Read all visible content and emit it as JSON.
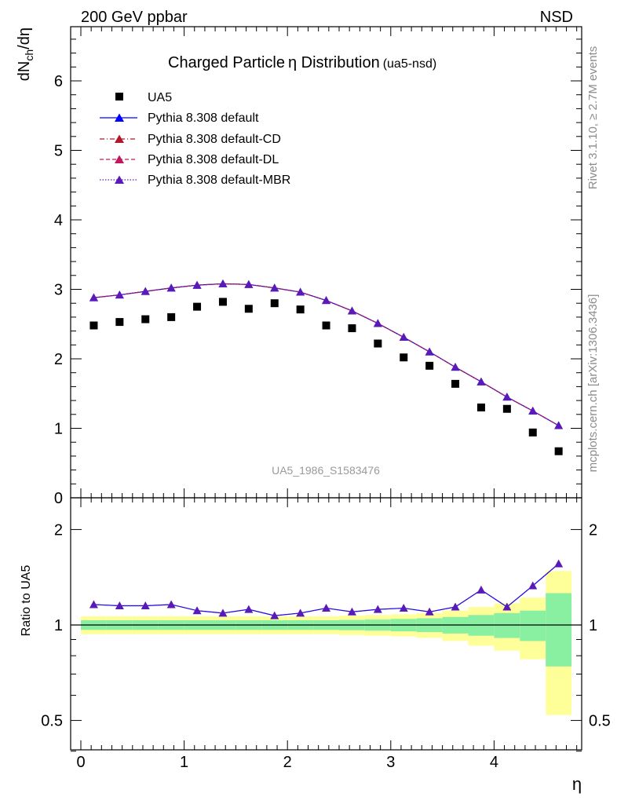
{
  "header": {
    "left": "200 GeV ppbar",
    "right": "NSD"
  },
  "side_text": {
    "upper": "Rivet 3.1.10, ≥ 2.7M events",
    "lower": "mcplots.cern.ch [arXiv:1306.3436]"
  },
  "chart_data": {
    "type": "scatter",
    "title": "Charged Particle",
    "title_eta": "η",
    "title_rest": " Distribution",
    "title_suffix": "(ua5-nsd)",
    "watermark": "UA5_1986_S1583476",
    "xlabel": "η",
    "ylabel_main": "dN",
    "ylabel_sub": "ch",
    "ylabel_rest": "/dη",
    "ratio_ylabel": "Ratio to UA5",
    "xlim": [
      -0.1,
      4.85
    ],
    "ylim": [
      0,
      6.8
    ],
    "ratio_ylim": [
      0.35,
      2.25
    ],
    "x_ticks": [
      "0",
      "1",
      "2",
      "3",
      "4"
    ],
    "y_ticks": [
      "0",
      "1",
      "2",
      "3",
      "4",
      "5",
      "6"
    ],
    "ratio_ticks": [
      "0.5",
      "1",
      "2"
    ],
    "x": [
      0.125,
      0.375,
      0.625,
      0.875,
      1.125,
      1.375,
      1.625,
      1.875,
      2.125,
      2.375,
      2.625,
      2.875,
      3.125,
      3.375,
      3.625,
      3.875,
      4.125,
      4.375,
      4.625
    ],
    "bin_edges": [
      0,
      0.25,
      0.5,
      0.75,
      1.0,
      1.25,
      1.5,
      1.75,
      2.0,
      2.25,
      2.5,
      2.75,
      3.0,
      3.25,
      3.5,
      3.75,
      4.0,
      4.25,
      4.5,
      4.75
    ],
    "series": [
      {
        "name": "UA5",
        "marker": "square",
        "color": "#000000",
        "values": [
          2.48,
          2.53,
          2.57,
          2.6,
          2.75,
          2.82,
          2.72,
          2.8,
          2.71,
          2.48,
          2.44,
          2.22,
          2.02,
          1.9,
          1.64,
          1.3,
          1.28,
          0.94,
          0.67
        ]
      },
      {
        "name": "Pythia 8.308 default",
        "marker": "triangle",
        "line": "solid",
        "color": "#0000ff",
        "values": [
          2.88,
          2.92,
          2.97,
          3.02,
          3.06,
          3.08,
          3.07,
          3.02,
          2.96,
          2.84,
          2.69,
          2.51,
          2.31,
          2.1,
          1.88,
          1.67,
          1.45,
          1.25,
          1.04
        ]
      },
      {
        "name": "Pythia 8.308 default-CD",
        "marker": "triangle",
        "line": "dashdot",
        "color": "#b2182b",
        "values": [
          2.88,
          2.92,
          2.97,
          3.02,
          3.06,
          3.08,
          3.07,
          3.02,
          2.96,
          2.84,
          2.69,
          2.51,
          2.31,
          2.1,
          1.88,
          1.67,
          1.45,
          1.25,
          1.04
        ]
      },
      {
        "name": "Pythia 8.308 default-DL",
        "marker": "triangle",
        "line": "dashed",
        "color": "#c2185b",
        "values": [
          2.88,
          2.92,
          2.97,
          3.02,
          3.06,
          3.08,
          3.07,
          3.02,
          2.96,
          2.84,
          2.69,
          2.51,
          2.31,
          2.1,
          1.88,
          1.67,
          1.45,
          1.25,
          1.04
        ]
      },
      {
        "name": "Pythia 8.308 default-MBR",
        "marker": "triangle",
        "line": "dotted",
        "color": "#5a1ab8",
        "values": [
          2.88,
          2.92,
          2.97,
          3.02,
          3.06,
          3.08,
          3.07,
          3.02,
          2.96,
          2.84,
          2.69,
          2.51,
          2.31,
          2.1,
          1.88,
          1.67,
          1.45,
          1.25,
          1.04
        ]
      }
    ],
    "ratio_values": [
      1.16,
      1.15,
      1.15,
      1.16,
      1.11,
      1.09,
      1.12,
      1.07,
      1.09,
      1.13,
      1.1,
      1.12,
      1.13,
      1.1,
      1.14,
      1.29,
      1.14,
      1.33,
      1.56
    ],
    "band_green": [
      0.035,
      0.035,
      0.035,
      0.035,
      0.035,
      0.035,
      0.035,
      0.035,
      0.035,
      0.035,
      0.037,
      0.04,
      0.045,
      0.05,
      0.06,
      0.075,
      0.09,
      0.11,
      0.26
    ],
    "band_yellow": [
      0.065,
      0.065,
      0.065,
      0.065,
      0.065,
      0.065,
      0.065,
      0.065,
      0.065,
      0.065,
      0.07,
      0.075,
      0.08,
      0.09,
      0.11,
      0.14,
      0.17,
      0.22,
      0.48
    ],
    "colors": {
      "band_green": "#88f0a0",
      "band_yellow": "#ffff99",
      "axis": "#000000",
      "watermark": "#9a9a9a"
    },
    "grid": false,
    "legend_position": "top-left"
  }
}
